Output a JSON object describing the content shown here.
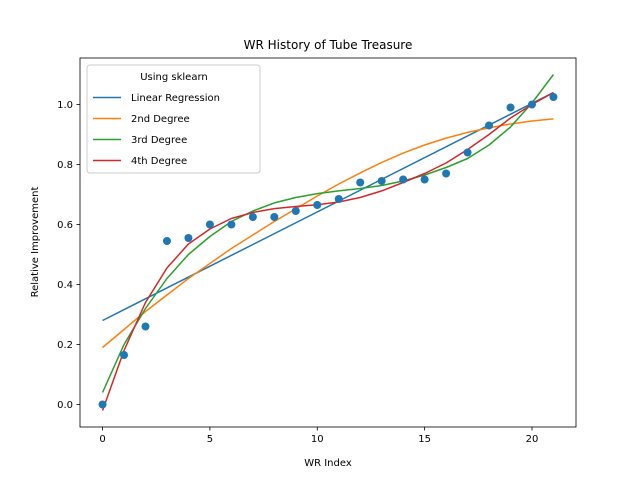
{
  "chart_data": {
    "type": "scatter",
    "title": "WR History of Tube Treasure",
    "xlabel": "WR Index",
    "ylabel": "Relative Improvement",
    "xlim": [
      -1.05,
      22.05
    ],
    "ylim": [
      -0.075,
      1.155
    ],
    "xticks": [
      0,
      5,
      10,
      15,
      20
    ],
    "yticks": [
      0.0,
      0.2,
      0.4,
      0.6,
      0.8,
      1.0
    ],
    "ytick_labels": [
      "0.0",
      "0.2",
      "0.4",
      "0.6",
      "0.8",
      "1.0"
    ],
    "grid": false,
    "legend": {
      "title": "Using sklearn",
      "placement": "top-left"
    },
    "points": {
      "color": "#1f77b4",
      "x": [
        0,
        1,
        2,
        3,
        4,
        5,
        6,
        7,
        8,
        9,
        10,
        11,
        12,
        13,
        14,
        15,
        16,
        17,
        18,
        19,
        20,
        21
      ],
      "y": [
        0.0,
        0.165,
        0.26,
        0.545,
        0.555,
        0.6,
        0.6,
        0.625,
        0.625,
        0.645,
        0.665,
        0.685,
        0.74,
        0.745,
        0.75,
        0.75,
        0.77,
        0.84,
        0.93,
        0.99,
        1.0,
        1.025
      ]
    },
    "series": [
      {
        "name": "Linear Regression",
        "color": "#1f77b4",
        "x": [
          0,
          21
        ],
        "y": [
          0.28,
          1.04
        ]
      },
      {
        "name": "2nd Degree",
        "color": "#ff7f0e",
        "x": [
          0,
          1,
          2,
          3,
          4,
          5,
          6,
          7,
          8,
          9,
          10,
          11,
          12,
          13,
          14,
          15,
          16,
          17,
          18,
          19,
          20,
          21
        ],
        "y": [
          0.19,
          0.25,
          0.31,
          0.365,
          0.42,
          0.47,
          0.52,
          0.565,
          0.61,
          0.652,
          0.695,
          0.735,
          0.772,
          0.807,
          0.838,
          0.865,
          0.888,
          0.907,
          0.922,
          0.935,
          0.945,
          0.952
        ]
      },
      {
        "name": "3rd Degree",
        "color": "#2ca02c",
        "x": [
          0,
          1,
          2,
          3,
          4,
          5,
          6,
          7,
          8,
          9,
          10,
          11,
          12,
          13,
          14,
          15,
          16,
          17,
          18,
          19,
          20,
          21
        ],
        "y": [
          0.04,
          0.2,
          0.32,
          0.42,
          0.5,
          0.56,
          0.61,
          0.645,
          0.672,
          0.69,
          0.703,
          0.712,
          0.72,
          0.73,
          0.745,
          0.765,
          0.79,
          0.82,
          0.865,
          0.925,
          1.005,
          1.1
        ]
      },
      {
        "name": "4th Degree",
        "color": "#d62728",
        "x": [
          0,
          1,
          2,
          3,
          4,
          5,
          6,
          7,
          8,
          9,
          10,
          11,
          12,
          13,
          14,
          15,
          16,
          17,
          18,
          19,
          20,
          21
        ],
        "y": [
          -0.02,
          0.18,
          0.34,
          0.455,
          0.535,
          0.585,
          0.62,
          0.64,
          0.653,
          0.66,
          0.666,
          0.675,
          0.69,
          0.712,
          0.74,
          0.77,
          0.805,
          0.85,
          0.9,
          0.955,
          1.0,
          1.04
        ]
      }
    ]
  }
}
